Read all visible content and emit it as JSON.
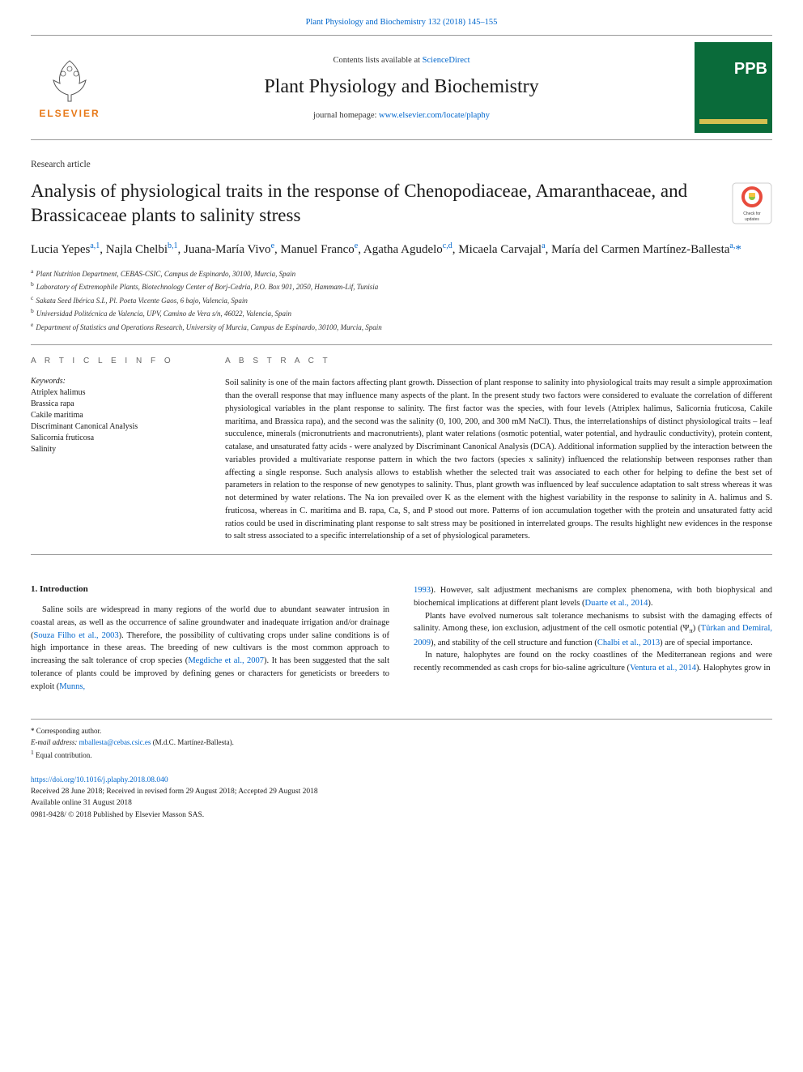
{
  "journal_ref": "Plant Physiology and Biochemistry 132 (2018) 145–155",
  "header": {
    "contents_prefix": "Contents lists available at ",
    "contents_link": "ScienceDirect",
    "journal_title": "Plant Physiology and Biochemistry",
    "homepage_prefix": "journal homepage: ",
    "homepage_link": "www.elsevier.com/locate/plaphy",
    "elsevier_label": "ELSEVIER",
    "cover_text": "PPB"
  },
  "article_type": "Research article",
  "title": "Analysis of physiological traits in the response of Chenopodiaceae, Amaranthaceae, and Brassicaceae plants to salinity stress",
  "check_updates_label": "Check for updates",
  "authors_html": "Lucia Yepes<sup>a,1</sup>, Najla Chelbi<sup>b,1</sup>, Juana-María Vivo<sup>e</sup>, Manuel Franco<sup>e</sup>, Agatha Agudelo<sup>c,d</sup>, Micaela Carvajal<sup>a</sup>, María del Carmen Martínez-Ballesta<sup>a,</sup><span class='star'>*</span>",
  "affiliations": [
    {
      "key": "a",
      "text": "Plant Nutrition Department, CEBAS-CSIC, Campus de Espinardo, 30100, Murcia, Spain"
    },
    {
      "key": "b",
      "text": "Laboratory of Extremophile Plants, Biotechnology Center of Borj-Cedria, P.O. Box 901, 2050, Hammam-Lif, Tunisia"
    },
    {
      "key": "c",
      "text": "Sakata Seed Ibérica S.L, Pl. Poeta Vicente Gaos, 6 bajo, Valencia, Spain"
    },
    {
      "key": "b2",
      "label": "b",
      "text": "Universidad Politécnica de Valencia, UPV, Camino de Vera s/n, 46022, Valencia, Spain"
    },
    {
      "key": "e",
      "text": "Department of Statistics and Operations Research, University of Murcia, Campus de Espinardo, 30100, Murcia, Spain"
    }
  ],
  "article_info_heading": "A R T I C L E   I N F O",
  "abstract_heading": "A B S T R A C T",
  "keywords_label": "Keywords:",
  "keywords": [
    "Atriplex halimus",
    "Brassica rapa",
    "Cakile maritima",
    "Discriminant Canonical Analysis",
    "Salicornia fruticosa",
    "Salinity"
  ],
  "abstract": "Soil salinity is one of the main factors affecting plant growth. Dissection of plant response to salinity into physiological traits may result a simple approximation than the overall response that may influence many aspects of the plant. In the present study two factors were considered to evaluate the correlation of different physiological variables in the plant response to salinity. The first factor was the species, with four levels (Atriplex halimus, Salicornia fruticosa, Cakile maritima, and Brassica rapa), and the second was the salinity (0, 100, 200, and 300 mM NaCl). Thus, the interrelationships of distinct physiological traits – leaf succulence, minerals (micronutrients and macronutrients), plant water relations (osmotic potential, water potential, and hydraulic conductivity), protein content, catalase, and unsaturated fatty acids - were analyzed by Discriminant Canonical Analysis (DCA). Additional information supplied by the interaction between the variables provided a multivariate response pattern in which the two factors (species x salinity) influenced the relationship between responses rather than affecting a single response. Such analysis allows to establish whether the selected trait was associated to each other for helping to define the best set of parameters in relation to the response of new genotypes to salinity. Thus, plant growth was influenced by leaf succulence adaptation to salt stress whereas it was not determined by water relations. The Na ion prevailed over K as the element with the highest variability in the response to salinity in A. halimus and S. fruticosa, whereas in C. maritima and B. rapa, Ca, S, and P stood out more. Patterns of ion accumulation together with the protein and unsaturated fatty acid ratios could be used in discriminating plant response to salt stress may be positioned in interrelated groups. The results highlight new evidences in the response to salt stress associated to a specific interrelationship of a set of physiological parameters.",
  "intro_heading": "1.  Introduction",
  "col1_p1": "Saline soils are widespread in many regions of the world due to abundant seawater intrusion in coastal areas, as well as the occurrence of saline groundwater and inadequate irrigation and/or drainage (<span class='cite'>Souza Filho et al., 2003</span>). Therefore, the possibility of cultivating crops under saline conditions is of high importance in these areas. The breeding of new cultivars is the most common approach to increasing the salt tolerance of crop species (<span class='cite'>Megdiche et al., 2007</span>). It has been suggested that the salt tolerance of plants could be improved by defining genes or characters for geneticists or breeders to exploit (<span class='cite'>Munns,</span>",
  "col2_p1": "<span class='cite'>1993</span>). However, salt adjustment mechanisms are complex phenomena, with both biophysical and biochemical implications at different plant levels (<span class='cite'>Duarte et al., 2014</span>).",
  "col2_p2": "Plants have evolved numerous salt tolerance mechanisms to subsist with the damaging effects of salinity. Among these, ion exclusion, adjustment of the cell osmotic potential (Ψ<sub>π</sub>) (<span class='cite'>Türkan and Demiral, 2009</span>), and stability of the cell structure and function (<span class='cite'>Chalbi et al., 2013</span>) are of special importance.",
  "col2_p3": "In nature, halophytes are found on the rocky coastlines of the Mediterranean regions and were recently recommended as cash crops for bio-saline agriculture (<span class='cite'>Ventura et al., 2014</span>). Halophytes grow in",
  "footnotes": {
    "corresponding": "Corresponding author.",
    "email_label": "E-mail address: ",
    "email": "mballesta@cebas.csic.es",
    "email_person": " (M.d.C. Martínez-Ballesta).",
    "equal": "Equal contribution."
  },
  "pub": {
    "doi": "https://doi.org/10.1016/j.plaphy.2018.08.040",
    "received": "Received 28 June 2018; Received in revised form 29 August 2018; Accepted 29 August 2018",
    "available": "Available online 31 August 2018",
    "copyright": "0981-9428/ © 2018 Published by Elsevier Masson SAS."
  },
  "colors": {
    "link": "#0066cc",
    "elsevier_orange": "#e77817",
    "cover_green": "#0a6b3a",
    "cover_bar": "#d4c050",
    "crossmark_ring": "#e84b3c",
    "crossmark_inner": "#8cc63f"
  }
}
